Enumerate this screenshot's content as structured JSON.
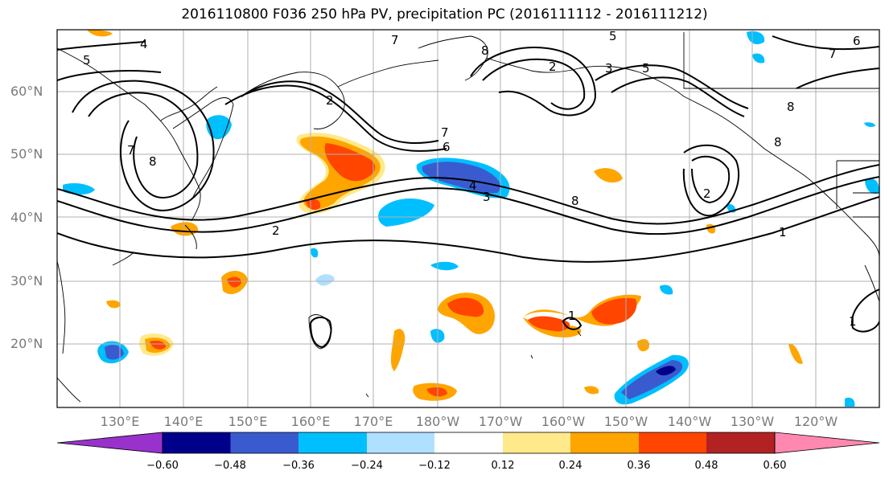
{
  "title": "2016110800 F036 250 hPa PV, precipitation PC (2016111112 - 2016111212)",
  "latitude_labels": [
    "60°N",
    "50°N",
    "40°N",
    "30°N",
    "20°N"
  ],
  "longitude_labels": [
    "130°E",
    "140°E",
    "150°E",
    "160°E",
    "170°E",
    "180°W",
    "170°W",
    "160°W",
    "150°W",
    "140°W",
    "130°W",
    "120°W"
  ],
  "colorbar": {
    "ticks": [
      "−0.60",
      "−0.48",
      "−0.36",
      "−0.24",
      "−0.12",
      "0.12",
      "0.24",
      "0.36",
      "0.48",
      "0.60"
    ],
    "colors": [
      "#9932cc",
      "#00008b",
      "#3a5bd0",
      "#00bfff",
      "#b0e0ff",
      "#ffffff",
      "#ffe98a",
      "#ffa500",
      "#ff4500",
      "#b22222",
      "#ff88b0"
    ]
  },
  "contour_labels": [
    "4",
    "5",
    "7",
    "8",
    "5",
    "3",
    "5",
    "2",
    "6",
    "7",
    "8",
    "7",
    "6",
    "4",
    "3",
    "8",
    "2",
    "8",
    "7",
    "1",
    "1",
    "2",
    "8",
    "2",
    "1"
  ],
  "colors": {
    "contour": "#000000",
    "grid": "#b0b0b0",
    "frame": "#000000"
  }
}
